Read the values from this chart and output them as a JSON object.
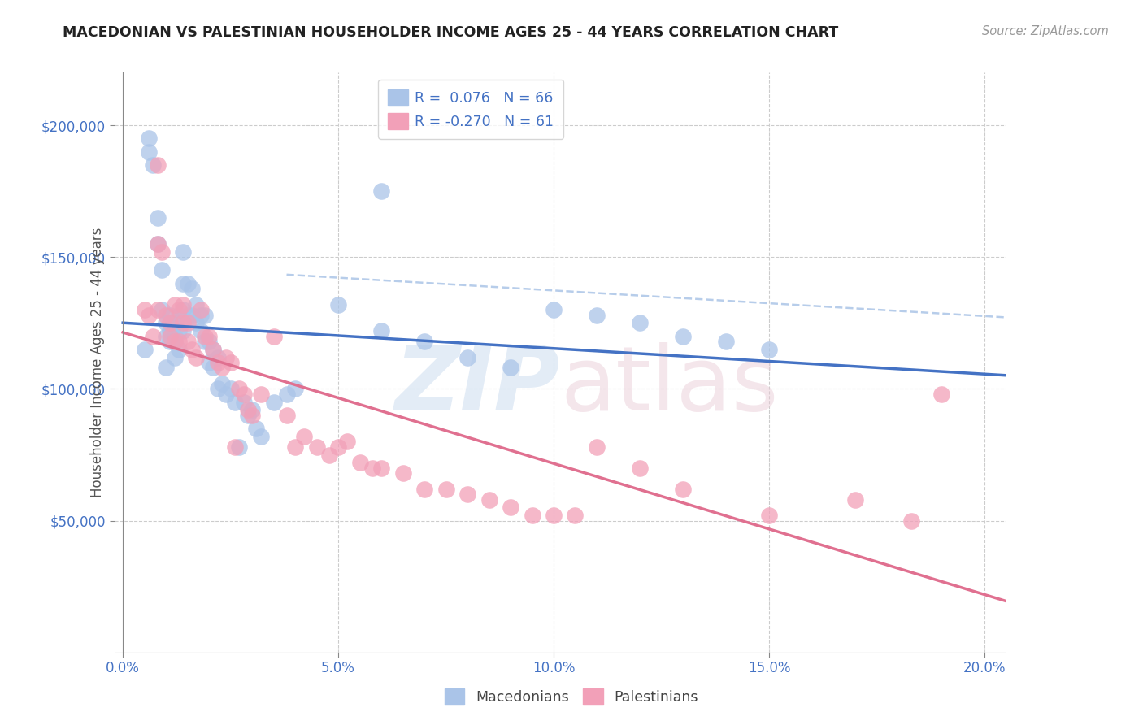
{
  "title": "MACEDONIAN VS PALESTINIAN HOUSEHOLDER INCOME AGES 25 - 44 YEARS CORRELATION CHART",
  "source": "Source: ZipAtlas.com",
  "xlabel_ticks": [
    "0.0%",
    "5.0%",
    "10.0%",
    "15.0%",
    "20.0%"
  ],
  "xlabel_tick_vals": [
    0.0,
    0.05,
    0.1,
    0.15,
    0.2
  ],
  "ylabel": "Householder Income Ages 25 - 44 years",
  "ylabel_ticks": [
    "$50,000",
    "$100,000",
    "$150,000",
    "$200,000"
  ],
  "ylabel_tick_vals": [
    50000,
    100000,
    150000,
    200000
  ],
  "xlim": [
    -0.002,
    0.205
  ],
  "ylim": [
    0,
    220000
  ],
  "mac_color": "#aac4e8",
  "pal_color": "#f2a0b8",
  "mac_line_color": "#4472c4",
  "pal_line_color": "#e07090",
  "mac_dash_color": "#b0c8e8",
  "mac_x": [
    0.005,
    0.006,
    0.006,
    0.007,
    0.008,
    0.008,
    0.009,
    0.009,
    0.01,
    0.01,
    0.01,
    0.011,
    0.011,
    0.011,
    0.012,
    0.012,
    0.012,
    0.012,
    0.013,
    0.013,
    0.013,
    0.014,
    0.014,
    0.014,
    0.014,
    0.015,
    0.015,
    0.016,
    0.016,
    0.017,
    0.017,
    0.018,
    0.018,
    0.019,
    0.019,
    0.02,
    0.02,
    0.021,
    0.021,
    0.022,
    0.022,
    0.023,
    0.024,
    0.025,
    0.026,
    0.027,
    0.028,
    0.029,
    0.03,
    0.031,
    0.032,
    0.035,
    0.038,
    0.04,
    0.05,
    0.06,
    0.07,
    0.08,
    0.09,
    0.1,
    0.11,
    0.12,
    0.13,
    0.14,
    0.15,
    0.06
  ],
  "mac_y": [
    115000,
    195000,
    190000,
    185000,
    165000,
    155000,
    145000,
    130000,
    125000,
    120000,
    108000,
    128000,
    122000,
    118000,
    125000,
    120000,
    118000,
    112000,
    128000,
    122000,
    115000,
    152000,
    140000,
    130000,
    122000,
    140000,
    128000,
    138000,
    128000,
    132000,
    125000,
    128000,
    122000,
    128000,
    118000,
    118000,
    110000,
    115000,
    108000,
    112000,
    100000,
    102000,
    98000,
    100000,
    95000,
    78000,
    95000,
    90000,
    92000,
    85000,
    82000,
    95000,
    98000,
    100000,
    132000,
    122000,
    118000,
    112000,
    108000,
    130000,
    128000,
    125000,
    120000,
    118000,
    115000,
    175000
  ],
  "pal_x": [
    0.005,
    0.006,
    0.007,
    0.008,
    0.008,
    0.009,
    0.01,
    0.011,
    0.011,
    0.012,
    0.012,
    0.013,
    0.013,
    0.014,
    0.014,
    0.015,
    0.015,
    0.016,
    0.017,
    0.018,
    0.019,
    0.02,
    0.021,
    0.022,
    0.023,
    0.024,
    0.025,
    0.026,
    0.027,
    0.028,
    0.029,
    0.03,
    0.032,
    0.035,
    0.038,
    0.04,
    0.042,
    0.045,
    0.048,
    0.05,
    0.052,
    0.055,
    0.058,
    0.06,
    0.065,
    0.07,
    0.075,
    0.08,
    0.085,
    0.09,
    0.095,
    0.1,
    0.105,
    0.11,
    0.12,
    0.13,
    0.15,
    0.17,
    0.183,
    0.19,
    0.008
  ],
  "pal_y": [
    130000,
    128000,
    120000,
    155000,
    130000,
    152000,
    128000,
    125000,
    120000,
    132000,
    118000,
    130000,
    118000,
    132000,
    125000,
    125000,
    118000,
    115000,
    112000,
    130000,
    120000,
    120000,
    115000,
    110000,
    108000,
    112000,
    110000,
    78000,
    100000,
    98000,
    92000,
    90000,
    98000,
    120000,
    90000,
    78000,
    82000,
    78000,
    75000,
    78000,
    80000,
    72000,
    70000,
    70000,
    68000,
    62000,
    62000,
    60000,
    58000,
    55000,
    52000,
    52000,
    52000,
    78000,
    70000,
    62000,
    52000,
    58000,
    50000,
    98000,
    185000
  ],
  "mac_R": 0.076,
  "mac_N": 66,
  "pal_R": -0.27,
  "pal_N": 61
}
